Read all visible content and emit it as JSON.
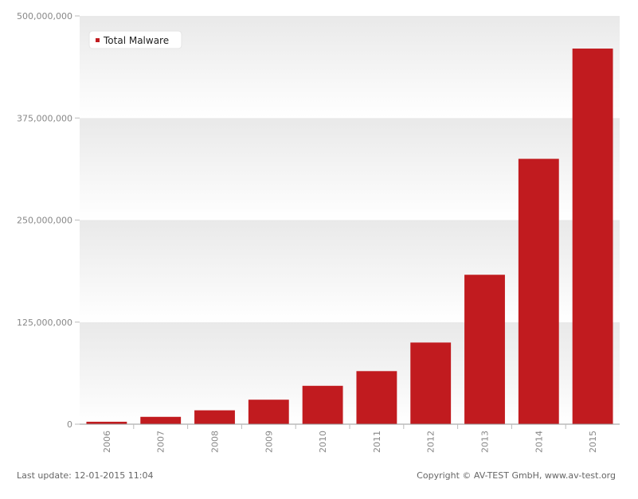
{
  "chart_data": {
    "type": "bar",
    "categories": [
      "2006",
      "2007",
      "2008",
      "2009",
      "2010",
      "2011",
      "2012",
      "2013",
      "2014",
      "2015"
    ],
    "series": [
      {
        "name": "Total Malware",
        "values": [
          3000000,
          9000000,
          17000000,
          30000000,
          47000000,
          65000000,
          100000000,
          183000000,
          325000000,
          460000000
        ]
      }
    ],
    "ylim": [
      0,
      500000000
    ],
    "yticks": [
      0,
      125000000,
      250000000,
      375000000,
      500000000
    ],
    "ytick_labels": [
      "0",
      "125,000,000",
      "250,000,000",
      "375,000,000",
      "500,000,000"
    ],
    "legend_position": "top-left",
    "colors": {
      "bar": "#c11b1f",
      "band_light": "#ffffff",
      "band_dark": "#ececec",
      "axis": "#999999"
    }
  },
  "footer": {
    "last_update": "Last update: 12-01-2015 11:04",
    "copyright": "Copyright © AV-TEST GmbH, www.av-test.org"
  }
}
